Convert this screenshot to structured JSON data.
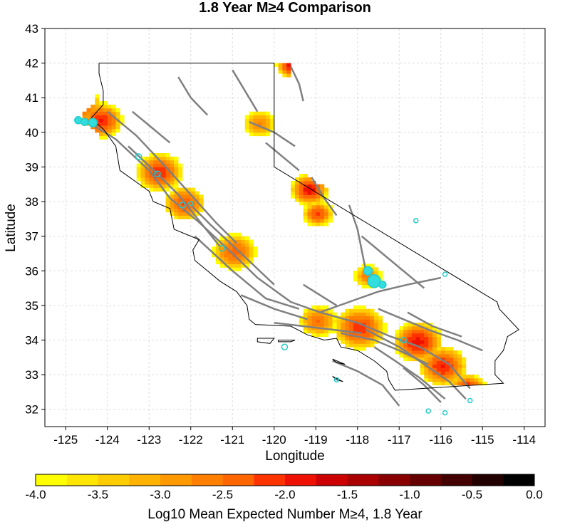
{
  "title": "1.8 Year M≥4 Comparison",
  "map": {
    "xlabel": "Longitude",
    "ylabel": "Latitude",
    "xlim": [
      -125.5,
      -113.5
    ],
    "ylim": [
      31.5,
      43
    ],
    "x_ticks": [
      "-125",
      "-124",
      "-123",
      "-122",
      "-121",
      "-120",
      "-119",
      "-118",
      "-117",
      "-116",
      "-115",
      "-114"
    ],
    "x_tick_values": [
      -125,
      -124,
      -123,
      -122,
      -121,
      -120,
      -119,
      -118,
      -117,
      -116,
      -115,
      -114
    ],
    "y_ticks": [
      "43",
      "42",
      "41",
      "40",
      "39",
      "38",
      "37",
      "36",
      "35",
      "34",
      "33",
      "32"
    ],
    "y_tick_values": [
      43,
      42,
      41,
      40,
      39,
      38,
      37,
      36,
      35,
      34,
      33,
      32
    ],
    "grid": true
  },
  "colorbar": {
    "label": "Log10 Mean Expected Number M≥4, 1.8 Year",
    "tick_labels": [
      "-4.0",
      "-3.5",
      "-3.0",
      "-2.5",
      "-2.0",
      "-1.5",
      "-1.0",
      "-0.5",
      "0.0"
    ],
    "range": [
      -4.0,
      0.0
    ],
    "colors": [
      "#ffff00",
      "#ffe600",
      "#ffcc00",
      "#ffb300",
      "#ff9900",
      "#ff8000",
      "#ff6600",
      "#ff3300",
      "#ee1100",
      "#cc0000",
      "#aa0000",
      "#880000",
      "#660000",
      "#440000",
      "#220000",
      "#000000"
    ]
  },
  "hotspots": [
    {
      "lon": -124.7,
      "lat": 40.7,
      "value": -2.3,
      "spread": 0.45
    },
    {
      "lon": -124.2,
      "lat": 40.3,
      "value": -2.0,
      "spread": 0.4
    },
    {
      "lon": -122.8,
      "lat": 38.8,
      "value": -2.1,
      "spread": 0.45
    },
    {
      "lon": -122.2,
      "lat": 37.9,
      "value": -2.2,
      "spread": 0.4
    },
    {
      "lon": -121.0,
      "lat": 36.5,
      "value": -2.4,
      "spread": 0.45
    },
    {
      "lon": -119.2,
      "lat": 38.3,
      "value": -1.9,
      "spread": 0.35
    },
    {
      "lon": -119.0,
      "lat": 37.6,
      "value": -2.2,
      "spread": 0.3
    },
    {
      "lon": -119.6,
      "lat": 41.9,
      "value": -1.8,
      "spread": 0.3
    },
    {
      "lon": -118.0,
      "lat": 34.3,
      "value": -2.1,
      "spread": 0.5
    },
    {
      "lon": -116.6,
      "lat": 33.9,
      "value": -1.9,
      "spread": 0.45
    },
    {
      "lon": -116.0,
      "lat": 33.2,
      "value": -2.0,
      "spread": 0.45
    },
    {
      "lon": -115.4,
      "lat": 32.5,
      "value": -1.8,
      "spread": 0.35
    },
    {
      "lon": -117.8,
      "lat": 35.8,
      "value": -2.6,
      "spread": 0.3
    },
    {
      "lon": -120.4,
      "lat": 40.2,
      "value": -2.7,
      "spread": 0.35
    },
    {
      "lon": -119.0,
      "lat": 34.5,
      "value": -2.5,
      "spread": 0.4
    }
  ],
  "observed_events": [
    {
      "lon": -124.7,
      "lat": 40.35,
      "size": 5
    },
    {
      "lon": -124.55,
      "lat": 40.3,
      "size": 5
    },
    {
      "lon": -124.35,
      "lat": 40.28,
      "size": 6
    },
    {
      "lon": -123.25,
      "lat": 39.3,
      "size": 4
    },
    {
      "lon": -122.8,
      "lat": 38.8,
      "size": 4
    },
    {
      "lon": -122.2,
      "lat": 37.9,
      "size": 4
    },
    {
      "lon": -122.0,
      "lat": 37.95,
      "size": 3
    },
    {
      "lon": -121.25,
      "lat": 36.65,
      "size": 4
    },
    {
      "lon": -117.6,
      "lat": 35.7,
      "size": 9
    },
    {
      "lon": -117.75,
      "lat": 36.0,
      "size": 6
    },
    {
      "lon": -117.4,
      "lat": 35.6,
      "size": 5
    },
    {
      "lon": -116.6,
      "lat": 37.45,
      "size": 3
    },
    {
      "lon": -115.9,
      "lat": 35.9,
      "size": 3
    },
    {
      "lon": -119.75,
      "lat": 33.8,
      "size": 4
    },
    {
      "lon": -116.9,
      "lat": 34.0,
      "size": 4
    },
    {
      "lon": -118.5,
      "lat": 32.85,
      "size": 3
    },
    {
      "lon": -116.3,
      "lat": 31.95,
      "size": 3
    },
    {
      "lon": -115.9,
      "lat": 31.9,
      "size": 3
    },
    {
      "lon": -115.3,
      "lat": 32.25,
      "size": 3
    }
  ]
}
